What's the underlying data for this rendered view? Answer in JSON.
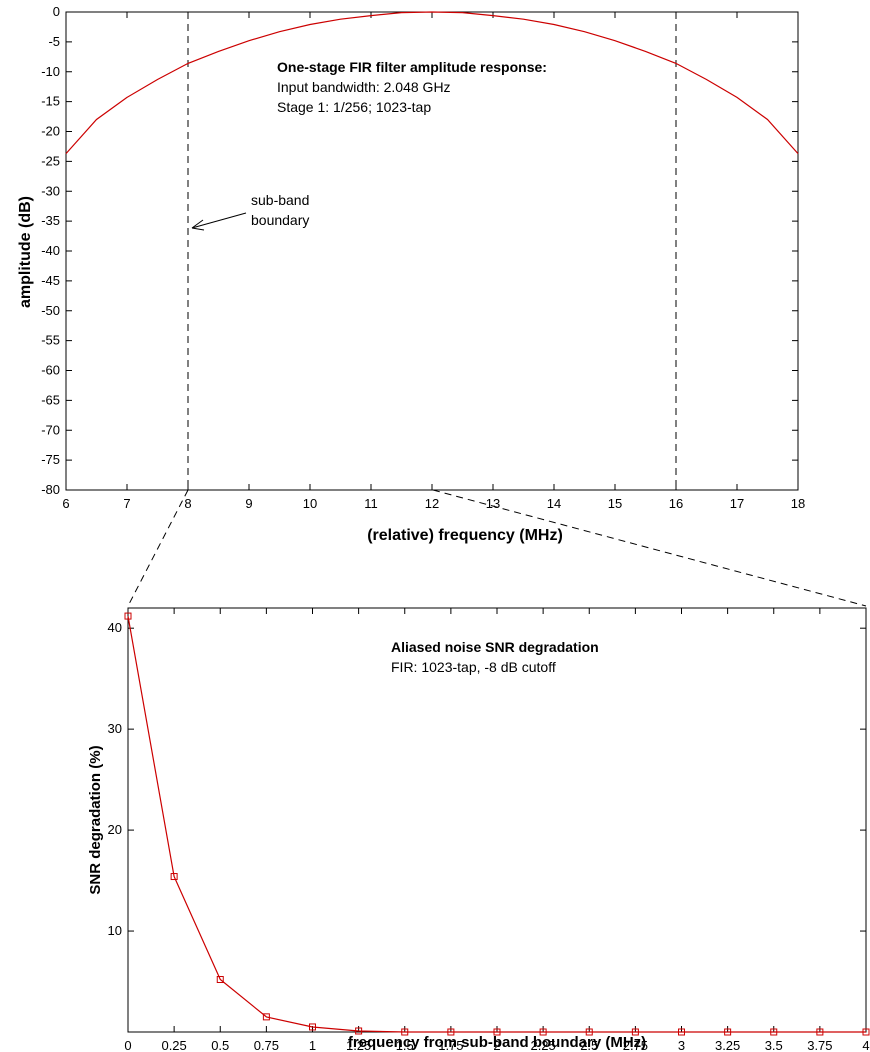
{
  "chart_data": [
    {
      "type": "line",
      "xlabel": "(relative) frequency (MHz)",
      "ylabel": "amplitude (dB)",
      "xlim": [
        6,
        18
      ],
      "ylim": [
        -80,
        0
      ],
      "xticks": [
        "6",
        "7",
        "8",
        "9",
        "10",
        "11",
        "12",
        "13",
        "14",
        "15",
        "16",
        "17",
        "18"
      ],
      "yticks": [
        "0",
        "-5",
        "-10",
        "-15",
        "-20",
        "-25",
        "-30",
        "-35",
        "-40",
        "-45",
        "-50",
        "-55",
        "-60",
        "-65",
        "-70",
        "-75",
        "-80"
      ],
      "grid": false,
      "series": [
        {
          "color": "#cc0000",
          "x": [
            6,
            6.5,
            7,
            7.5,
            8,
            8.5,
            9,
            9.5,
            10,
            10.5,
            11,
            11.5,
            12,
            12.5,
            13,
            13.5,
            14,
            14.5,
            15,
            15.5,
            16,
            16.5,
            17,
            17.5,
            18
          ],
          "y": [
            -23.7,
            -18.0,
            -14.3,
            -11.3,
            -8.6,
            -6.6,
            -4.8,
            -3.3,
            -2.1,
            -1.2,
            -0.6,
            -0.1,
            0.0,
            -0.1,
            -0.6,
            -1.2,
            -2.1,
            -3.3,
            -4.8,
            -6.6,
            -8.6,
            -11.3,
            -14.3,
            -18.0,
            -23.7
          ]
        }
      ],
      "vlines": [
        8,
        16
      ],
      "annotations": {
        "title": "One-stage FIR filter amplitude response:",
        "line1": "Input bandwidth: 2.048 GHz",
        "line2": "Stage 1: 1/256; 1023-tap",
        "arrow_text_1": "sub-band",
        "arrow_text_2": "boundary"
      }
    },
    {
      "type": "line",
      "xlabel": "frequency from sub-band boundary (MHz)",
      "ylabel": "SNR degradation (%)",
      "xlim": [
        0,
        4
      ],
      "ylim": [
        0,
        42
      ],
      "xticks": [
        "0",
        "0.25",
        "0.5",
        "0.75",
        "1",
        "1.25",
        "1.5",
        "1.75",
        "2",
        "2.25",
        "2.5",
        "2.75",
        "3",
        "3.25",
        "3.5",
        "3.75",
        "4"
      ],
      "yticks": [
        "10",
        "20",
        "30",
        "40"
      ],
      "grid": false,
      "series": [
        {
          "color": "#cc0000",
          "marker": "square",
          "x": [
            0,
            0.25,
            0.5,
            0.75,
            1,
            1.25,
            1.5,
            1.75,
            2,
            2.25,
            2.5,
            2.75,
            3,
            3.25,
            3.5,
            3.75,
            4
          ],
          "y": [
            41.2,
            15.4,
            5.2,
            1.5,
            0.5,
            0.1,
            0,
            0,
            0,
            0,
            0,
            0,
            0,
            0,
            0,
            0,
            0
          ]
        }
      ],
      "annotations": {
        "title": "Aliased noise SNR degradation",
        "line1": "FIR: 1023-tap, -8 dB cutoff"
      }
    }
  ]
}
